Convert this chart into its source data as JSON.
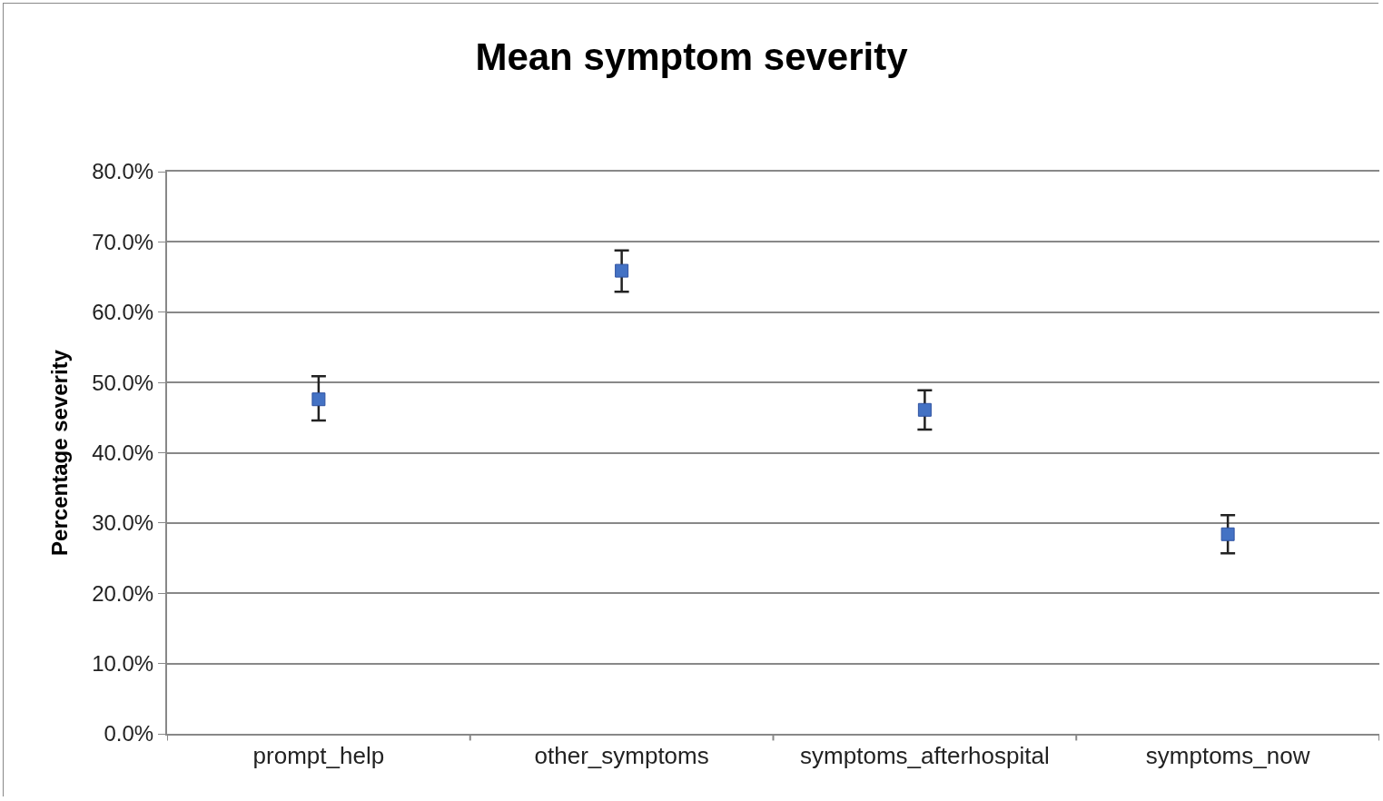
{
  "chart_data": {
    "type": "scatter",
    "title": "Mean symptom severity",
    "ylabel": "Percentage severity",
    "categories": [
      "prompt_help",
      "other_symptoms",
      "symptoms_afterhospital",
      "symptoms_now"
    ],
    "values": [
      47.6,
      65.9,
      46.1,
      28.4
    ],
    "errors": [
      [
        44.6,
        50.9
      ],
      [
        62.9,
        68.8
      ],
      [
        43.3,
        48.9
      ],
      [
        25.7,
        31.1
      ]
    ],
    "color": "#4472c4",
    "marker": "square",
    "grid": "y",
    "ylim": [
      0,
      80
    ],
    "yticks": [
      {
        "value": 0,
        "label": "0.0%"
      },
      {
        "value": 10,
        "label": "10.0%"
      },
      {
        "value": 20,
        "label": "20.0%"
      },
      {
        "value": 30,
        "label": "30.0%"
      },
      {
        "value": 40,
        "label": "40.0%"
      },
      {
        "value": 50,
        "label": "50.0%"
      },
      {
        "value": 60,
        "label": "60.0%"
      },
      {
        "value": 70,
        "label": "70.0%"
      },
      {
        "value": 80,
        "label": "80.0%"
      }
    ]
  }
}
